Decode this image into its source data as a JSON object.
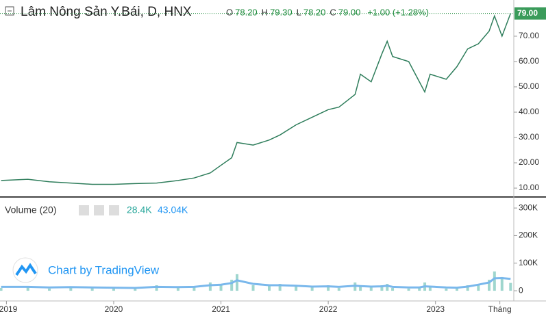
{
  "header": {
    "title": "Lâm Nông Sản Y.Bái, D, HNX",
    "o_label": "O",
    "o": "78.20",
    "h_label": "H",
    "h": "79.30",
    "l_label": "L",
    "l": "78.20",
    "c_label": "C",
    "c": "79.00",
    "change": "+1.00 (+1.28%)",
    "last_tag": "79.00"
  },
  "volume_legend": {
    "title": "Volume (20)",
    "volume": "28.4K",
    "ma": "43.04K"
  },
  "watermark": "Chart by TradingView",
  "chart_data": [
    {
      "type": "line",
      "name": "price",
      "x": [
        2018.95,
        2019.2,
        2019.4,
        2019.6,
        2019.8,
        2020.0,
        2020.2,
        2020.4,
        2020.6,
        2020.75,
        2020.9,
        2021.0,
        2021.1,
        2021.15,
        2021.3,
        2021.45,
        2021.55,
        2021.7,
        2021.85,
        2022.0,
        2022.1,
        2022.25,
        2022.3,
        2022.4,
        2022.5,
        2022.55,
        2022.6,
        2022.75,
        2022.85,
        2022.9,
        2022.95,
        2023.1,
        2023.2,
        2023.3,
        2023.4,
        2023.5,
        2023.55,
        2023.62,
        2023.7
      ],
      "values": [
        13,
        13.5,
        12.5,
        12,
        11.5,
        11.5,
        11.8,
        12,
        13,
        14,
        16,
        19,
        22,
        28,
        27,
        29,
        31,
        35,
        38,
        41,
        42,
        47,
        55,
        52,
        63,
        68,
        62,
        60,
        52,
        48,
        55,
        53,
        58,
        65,
        67,
        72,
        78,
        70,
        79
      ],
      "color": "#2e7d5b",
      "xlim": [
        2018.94,
        2023.73
      ],
      "xticks": [
        2019,
        2020,
        2021,
        2022,
        2023,
        {
          "value": 2023.6,
          "label": "Tháng"
        }
      ],
      "ylim": [
        6.5,
        84.3
      ],
      "yticks": [
        {
          "value": 10,
          "label": "10.00"
        },
        {
          "value": 20,
          "label": "20.00"
        },
        {
          "value": 30,
          "label": "30.00"
        },
        {
          "value": 40,
          "label": "40.00"
        },
        {
          "value": 50,
          "label": "50.00"
        },
        {
          "value": 60,
          "label": "60.00"
        },
        {
          "value": 70,
          "label": "70.00"
        }
      ]
    },
    {
      "type": "bar",
      "name": "volume",
      "x": [
        2018.95,
        2019.2,
        2019.4,
        2019.6,
        2019.8,
        2020.0,
        2020.2,
        2020.4,
        2020.6,
        2020.75,
        2020.9,
        2021.0,
        2021.1,
        2021.15,
        2021.3,
        2021.45,
        2021.55,
        2021.7,
        2021.85,
        2022.0,
        2022.1,
        2022.25,
        2022.3,
        2022.4,
        2022.5,
        2022.55,
        2022.6,
        2022.75,
        2022.85,
        2022.9,
        2022.95,
        2023.1,
        2023.2,
        2023.3,
        2023.4,
        2023.5,
        2023.55,
        2023.62,
        2023.7
      ],
      "values": [
        10000,
        12000,
        8000,
        15000,
        9000,
        11000,
        7000,
        20000,
        10000,
        14000,
        30000,
        25000,
        40000,
        60000,
        20000,
        18000,
        25000,
        15000,
        12000,
        20000,
        10000,
        30000,
        15000,
        12000,
        20000,
        25000,
        10000,
        8000,
        12000,
        30000,
        15000,
        8000,
        10000,
        20000,
        25000,
        40000,
        70000,
        50000,
        28400
      ],
      "color": "#9fd6ce",
      "ma": [
        14000,
        14000,
        12000,
        13000,
        12000,
        11000,
        10000,
        14000,
        13000,
        14000,
        20000,
        22000,
        28000,
        38000,
        25000,
        20000,
        20000,
        18000,
        15000,
        16000,
        14000,
        18000,
        17000,
        15000,
        16000,
        18000,
        14000,
        12000,
        12000,
        16000,
        15000,
        12000,
        11000,
        15000,
        22000,
        30000,
        45000,
        46000,
        43040
      ],
      "ma_color": "#7ab8ec",
      "ylim": [
        -37000,
        335000
      ],
      "yticks": [
        {
          "value": 0,
          "label": "0"
        },
        {
          "value": 100000,
          "label": "100K"
        },
        {
          "value": 200000,
          "label": "200K"
        },
        {
          "value": 300000,
          "label": "300K"
        }
      ]
    }
  ]
}
